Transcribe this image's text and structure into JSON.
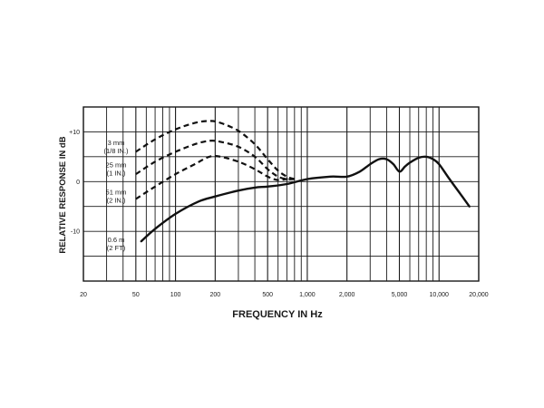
{
  "chart_data": {
    "type": "line",
    "xlabel": "FREQUENCY IN Hz",
    "ylabel": "RELATIVE RESPONSE IN dB",
    "x_scale": "log",
    "xlim": [
      20,
      20000
    ],
    "ylim": [
      -20,
      15
    ],
    "grid": true,
    "x_ticks": [
      {
        "value": 20,
        "label": "20"
      },
      {
        "value": 50,
        "label": "50"
      },
      {
        "value": 100,
        "label": "100"
      },
      {
        "value": 200,
        "label": "200"
      },
      {
        "value": 500,
        "label": "500"
      },
      {
        "value": 1000,
        "label": "1,000"
      },
      {
        "value": 2000,
        "label": "2,000"
      },
      {
        "value": 5000,
        "label": "5,000"
      },
      {
        "value": 10000,
        "label": "10,000"
      },
      {
        "value": 20000,
        "label": "20,000"
      }
    ],
    "y_ticks": [
      {
        "value": 10,
        "label": "+10"
      },
      {
        "value": 0,
        "label": "0"
      },
      {
        "value": -10,
        "label": "-10"
      }
    ],
    "series": [
      {
        "name": "3 mm (1/8 IN.)",
        "lines": [
          "3 mm",
          "(1/8 IN.)"
        ],
        "style": "dashed",
        "label_y": 7,
        "x": [
          50,
          70,
          100,
          140,
          180,
          220,
          300,
          400,
          500,
          600,
          700,
          800
        ],
        "y": [
          6,
          8.5,
          10.5,
          11.8,
          12.2,
          11.8,
          10.2,
          7.5,
          4.5,
          2.2,
          1,
          0.5
        ]
      },
      {
        "name": "25 mm (1 IN.)",
        "lines": [
          "25 mm",
          "(1 IN.)"
        ],
        "style": "dashed",
        "label_y": 2.5,
        "x": [
          50,
          70,
          100,
          140,
          180,
          220,
          300,
          400,
          500,
          600,
          700,
          800
        ],
        "y": [
          1.5,
          4,
          6,
          7.5,
          8.2,
          8,
          7,
          5,
          2.5,
          1,
          0.5,
          0.5
        ]
      },
      {
        "name": "51 mm (2 IN.)",
        "lines": [
          "51 mm",
          "(2 IN.)"
        ],
        "style": "dashed",
        "label_y": -3,
        "x": [
          50,
          70,
          100,
          140,
          180,
          220,
          300,
          400,
          500,
          600,
          700,
          800
        ],
        "y": [
          -3.5,
          -1,
          1.5,
          3.5,
          5,
          5,
          4,
          2.5,
          1,
          0.3,
          0.5,
          0.5
        ]
      },
      {
        "name": "0.6 m (2 FT)",
        "lines": [
          "0.6 m",
          "(2 FT)"
        ],
        "style": "solid",
        "label_y": -12.5,
        "x": [
          55,
          70,
          100,
          150,
          200,
          300,
          400,
          500,
          700,
          1000,
          1500,
          2000,
          2500,
          3000,
          3500,
          4000,
          4500,
          5000,
          5500,
          6000,
          7000,
          8000,
          9000,
          10000,
          12000,
          15000,
          17000
        ],
        "y": [
          -12,
          -9.5,
          -6.5,
          -4,
          -3,
          -1.8,
          -1.2,
          -1,
          -0.5,
          0.5,
          1,
          1,
          2,
          3.5,
          4.5,
          4.5,
          3.5,
          2,
          3,
          3.8,
          4.8,
          5,
          4.5,
          3.5,
          0.5,
          -3,
          -5
        ]
      }
    ]
  }
}
